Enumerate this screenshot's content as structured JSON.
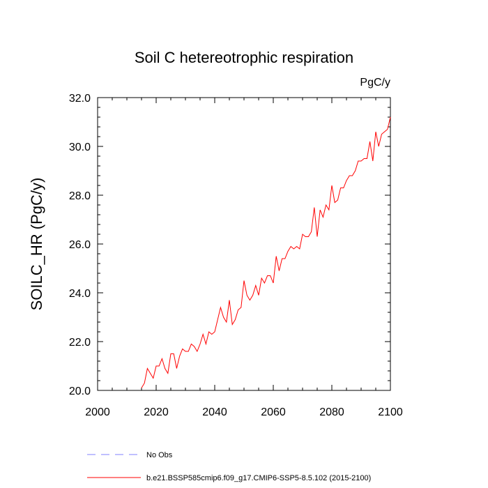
{
  "chart_data": {
    "type": "line",
    "title": "Soil C hetereotrophic respiration",
    "units_label": "PgC/y",
    "xlabel": "",
    "ylabel": "SOILC_HR  (PgC/y)",
    "xlim": [
      2000,
      2100
    ],
    "ylim": [
      20.0,
      32.0
    ],
    "x_ticks": [
      2000,
      2020,
      2040,
      2060,
      2080,
      2100
    ],
    "y_ticks": [
      20.0,
      22.0,
      24.0,
      26.0,
      28.0,
      30.0,
      32.0
    ],
    "x_tick_labels": [
      "2000",
      "2020",
      "2040",
      "2060",
      "2080",
      "2100"
    ],
    "y_tick_labels": [
      "20.0",
      "22.0",
      "24.0",
      "26.0",
      "28.0",
      "30.0",
      "32.0"
    ],
    "grid": false,
    "legend_position": "bottom",
    "series": [
      {
        "name": "No Obs",
        "color": "#8080ff",
        "dash": "dashed",
        "x": [],
        "y": []
      },
      {
        "name": "b.e21.BSSP585cmip6.f09_g17.CMIP6-SSP5-8.5.102 (2015-2100)",
        "color": "#ff0000",
        "dash": "solid",
        "x": [
          2015,
          2016,
          2017,
          2018,
          2019,
          2020,
          2021,
          2022,
          2023,
          2024,
          2025,
          2026,
          2027,
          2028,
          2029,
          2030,
          2031,
          2032,
          2033,
          2034,
          2035,
          2036,
          2037,
          2038,
          2039,
          2040,
          2041,
          2042,
          2043,
          2044,
          2045,
          2046,
          2047,
          2048,
          2049,
          2050,
          2051,
          2052,
          2053,
          2054,
          2055,
          2056,
          2057,
          2058,
          2059,
          2060,
          2061,
          2062,
          2063,
          2064,
          2065,
          2066,
          2067,
          2068,
          2069,
          2070,
          2071,
          2072,
          2073,
          2074,
          2075,
          2076,
          2077,
          2078,
          2079,
          2080,
          2081,
          2082,
          2083,
          2084,
          2085,
          2086,
          2087,
          2088,
          2089,
          2090,
          2091,
          2092,
          2093,
          2094,
          2095,
          2096,
          2097,
          2098,
          2099,
          2100
        ],
        "y": [
          20.1,
          20.3,
          20.9,
          20.7,
          20.5,
          21.0,
          21.0,
          21.3,
          20.9,
          20.7,
          21.5,
          21.5,
          20.9,
          21.4,
          21.7,
          21.6,
          21.6,
          21.9,
          21.8,
          21.6,
          21.9,
          22.3,
          21.9,
          22.4,
          22.3,
          22.4,
          22.9,
          23.4,
          23.0,
          22.8,
          23.7,
          22.7,
          22.9,
          23.3,
          23.4,
          24.5,
          23.9,
          23.7,
          23.9,
          24.3,
          23.9,
          24.6,
          24.4,
          24.7,
          24.7,
          24.4,
          25.5,
          24.9,
          25.4,
          25.4,
          25.7,
          25.9,
          25.8,
          25.9,
          25.8,
          26.4,
          26.3,
          26.3,
          26.5,
          27.5,
          26.3,
          27.4,
          27.1,
          27.6,
          27.4,
          28.4,
          27.7,
          27.8,
          28.3,
          28.3,
          28.6,
          28.8,
          28.8,
          29.0,
          29.4,
          29.4,
          29.5,
          29.5,
          30.2,
          29.4,
          30.6,
          30.0,
          30.5,
          30.6,
          30.7,
          31.2
        ]
      }
    ]
  }
}
